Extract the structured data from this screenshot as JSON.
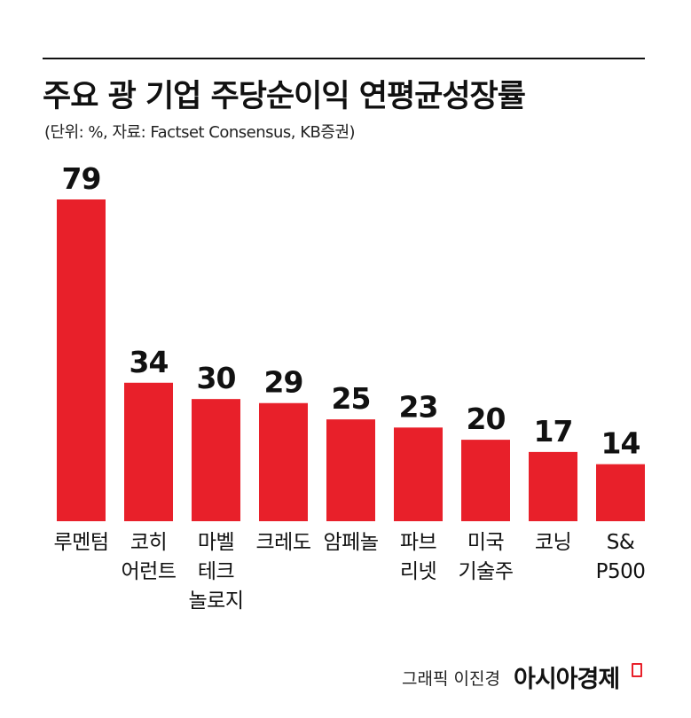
{
  "chart_data": {
    "type": "bar",
    "title": "주요 광 기업 주당순이익 연평균성장률",
    "subtitle": "(단위: %, 자료: Factset Consensus, KB증권)",
    "categories": [
      "루멘텀",
      "코히\n어런트",
      "마벨\n테크\n놀로지",
      "크레도",
      "암페놀",
      "파브\n리넷",
      "미국\n기술주",
      "코닝",
      "S&\nP500"
    ],
    "values": [
      79,
      34,
      30,
      29,
      25,
      23,
      20,
      17,
      14
    ],
    "color": "#e8202a"
  },
  "footer": {
    "credit": "그래픽 이진경",
    "brand": "아시아경제"
  }
}
